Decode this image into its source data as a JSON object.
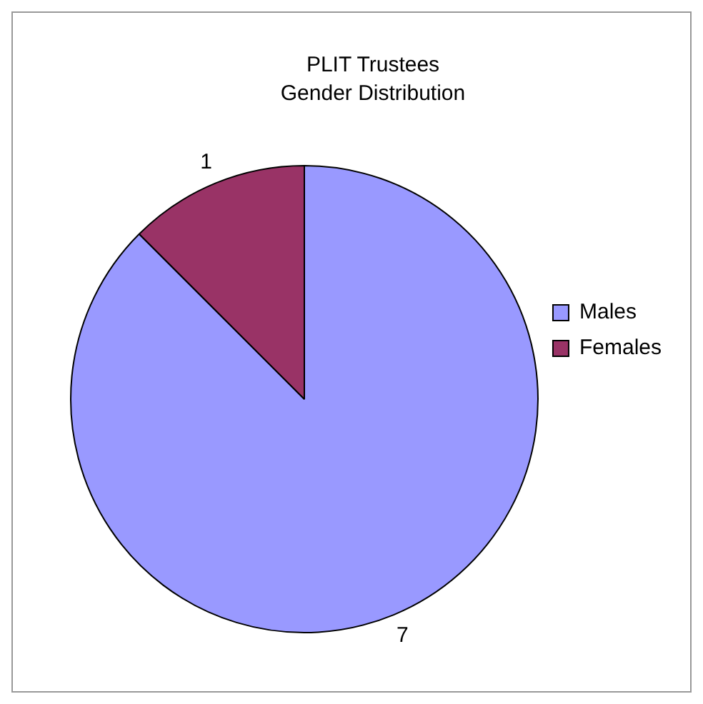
{
  "chart_data": {
    "type": "pie",
    "title": "PLIT Trustees",
    "subtitle": "Gender Distribution",
    "categories": [
      "Males",
      "Females"
    ],
    "values": [
      7,
      1
    ],
    "colors": [
      "#9999ff",
      "#993366"
    ],
    "data_labels": true,
    "legend": "right"
  }
}
